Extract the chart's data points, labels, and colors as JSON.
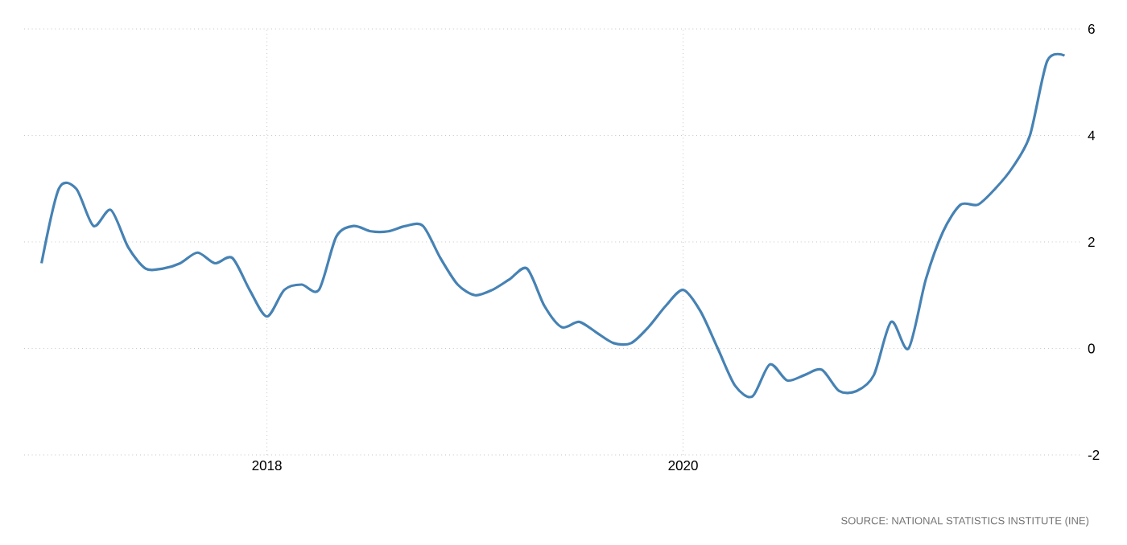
{
  "chart_data": {
    "type": "line",
    "x": [
      "2016-12",
      "2017-01",
      "2017-02",
      "2017-03",
      "2017-04",
      "2017-05",
      "2017-06",
      "2017-07",
      "2017-08",
      "2017-09",
      "2017-10",
      "2017-11",
      "2017-12",
      "2018-01",
      "2018-02",
      "2018-03",
      "2018-04",
      "2018-05",
      "2018-06",
      "2018-07",
      "2018-08",
      "2018-09",
      "2018-10",
      "2018-11",
      "2018-12",
      "2019-01",
      "2019-02",
      "2019-03",
      "2019-04",
      "2019-05",
      "2019-06",
      "2019-07",
      "2019-08",
      "2019-09",
      "2019-10",
      "2019-11",
      "2019-12",
      "2020-01",
      "2020-02",
      "2020-03",
      "2020-04",
      "2020-05",
      "2020-06",
      "2020-07",
      "2020-08",
      "2020-09",
      "2020-10",
      "2020-11",
      "2020-12",
      "2021-01",
      "2021-02",
      "2021-03",
      "2021-04",
      "2021-05",
      "2021-06",
      "2021-07",
      "2021-08",
      "2021-09",
      "2021-10",
      "2021-11"
    ],
    "series": [
      {
        "color": "#4682b4",
        "values": [
          1.6,
          3.0,
          3.0,
          2.3,
          2.6,
          1.9,
          1.5,
          1.5,
          1.6,
          1.8,
          1.6,
          1.7,
          1.1,
          0.6,
          1.1,
          1.2,
          1.1,
          2.1,
          2.3,
          2.2,
          2.2,
          2.3,
          2.3,
          1.7,
          1.2,
          1.0,
          1.1,
          1.3,
          1.5,
          0.8,
          0.4,
          0.5,
          0.3,
          0.1,
          0.1,
          0.4,
          0.8,
          1.1,
          0.7,
          0.0,
          -0.7,
          -0.9,
          -0.3,
          -0.6,
          -0.5,
          -0.4,
          -0.8,
          -0.8,
          -0.5,
          0.5,
          0.0,
          1.3,
          2.2,
          2.7,
          2.7,
          3.0,
          3.4,
          4.0,
          5.4,
          5.5
        ]
      }
    ],
    "xlim": [
      "2016-11",
      "2021-12"
    ],
    "xticks": [
      "2018",
      "2020"
    ],
    "ylim": [
      -2,
      6
    ],
    "yticks": [
      -2,
      0,
      2,
      4,
      6
    ],
    "grid": true,
    "marker": "none",
    "line_style": "solid",
    "annotations": [
      "SOURCE: NATIONAL STATISTICS INSTITUTE (INE)"
    ]
  }
}
